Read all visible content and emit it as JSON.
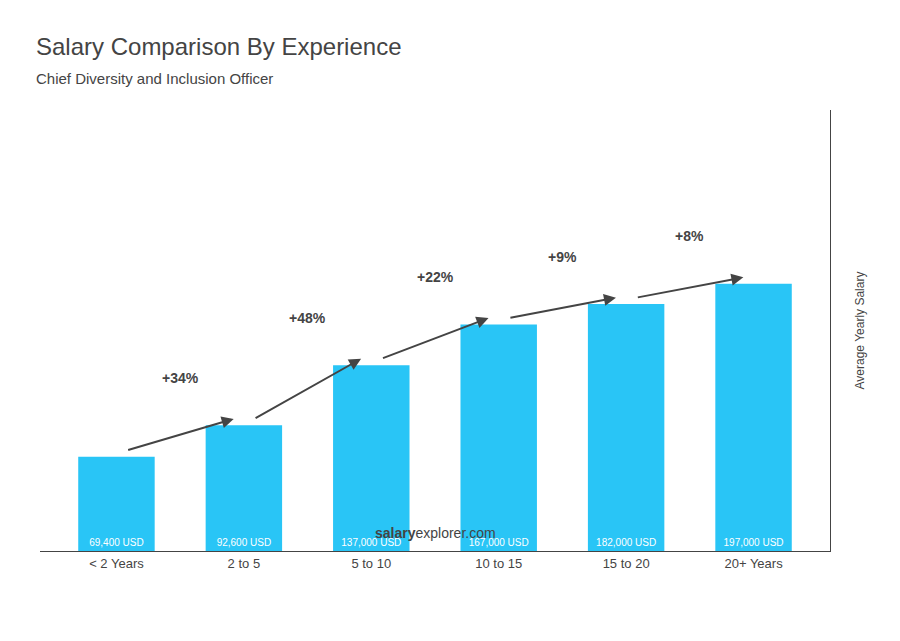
{
  "chart_data": {
    "type": "bar",
    "title": "Salary Comparison By Experience",
    "subtitle": "Chief Diversity and Inclusion Officer",
    "categories": [
      "< 2 Years",
      "2 to 5",
      "5 to 10",
      "10 to 15",
      "15 to 20",
      "20+ Years"
    ],
    "values": [
      69400,
      92600,
      137000,
      167000,
      182000,
      197000
    ],
    "value_labels": [
      "69,400 USD",
      "92,600 USD",
      "137,000 USD",
      "167,000 USD",
      "182,000 USD",
      "197,000 USD"
    ],
    "data_labels": true,
    "color": "#29C5F6",
    "ylabel": "Average Yearly Salary",
    "ylim": [
      0,
      325050
    ],
    "tick_labels": "x",
    "grid": false,
    "annotations": [
      "+34%",
      "+48%",
      "+22%",
      "+9%",
      "+8%"
    ],
    "footer": [
      "salary",
      "explorer.com"
    ]
  }
}
